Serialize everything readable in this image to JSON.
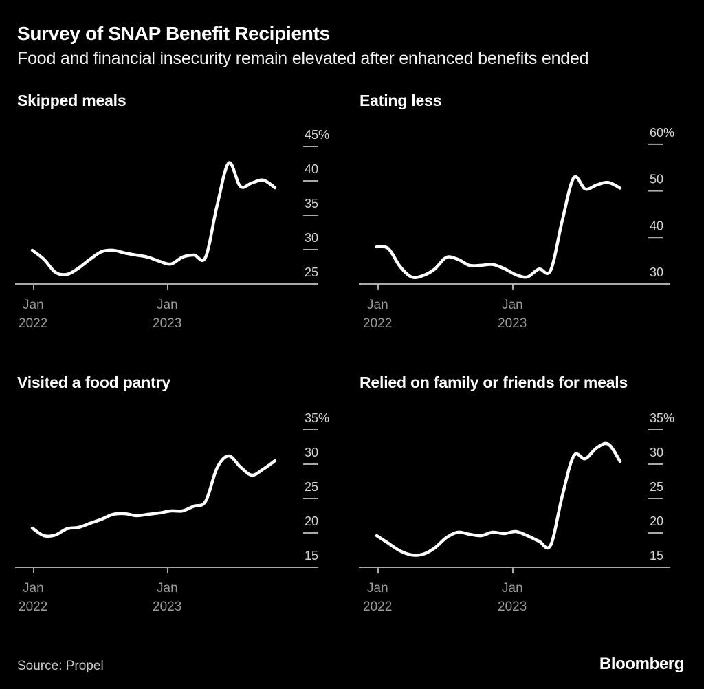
{
  "header": {
    "title": "Survey of SNAP Benefit Recipients",
    "subtitle": "Food and financial insecurity remain elevated after enhanced benefits ended"
  },
  "footer": {
    "source": "Source: Propel",
    "brand": "Bloomberg"
  },
  "colors": {
    "background": "#000000",
    "line": "#ffffff",
    "axis": "#a9a9a9",
    "y_tick_label": "#d4d4d4",
    "x_tick_label": "#9b9b9b"
  },
  "chart_data": [
    {
      "type": "line",
      "title": "Skipped meals",
      "unit": "%",
      "grid": false,
      "y_axis_side": "right",
      "ylim": [
        25,
        48
      ],
      "y_ticks": [
        {
          "value": 45,
          "label": "45%"
        },
        {
          "value": 40,
          "label": "40"
        },
        {
          "value": 35,
          "label": "35"
        },
        {
          "value": 30,
          "label": "30"
        },
        {
          "value": 25,
          "label": "25"
        }
      ],
      "x_ticks": [
        {
          "index": 0,
          "label": [
            "Jan",
            "2022"
          ]
        },
        {
          "index": 12,
          "label": [
            "Jan",
            "2023"
          ]
        }
      ],
      "x": [
        "Jan 2022",
        "Feb 2022",
        "Mar 2022",
        "Apr 2022",
        "May 2022",
        "Jun 2022",
        "Jul 2022",
        "Aug 2022",
        "Sep 2022",
        "Oct 2022",
        "Nov 2022",
        "Dec 2022",
        "Jan 2023",
        "Feb 2023",
        "Mar 2023",
        "Apr 2023",
        "May 2023",
        "Jun 2023",
        "Jul 2023",
        "Aug 2023",
        "Sep 2023",
        "Oct 2023"
      ],
      "values": [
        29.9,
        28.6,
        26.7,
        26.4,
        27.3,
        28.6,
        29.7,
        29.9,
        29.5,
        29.2,
        28.9,
        28.3,
        27.9,
        28.9,
        29.2,
        28.9,
        36.5,
        42.6,
        39.2,
        39.7,
        40.1,
        39.0
      ]
    },
    {
      "type": "line",
      "title": "Eating less",
      "unit": "%",
      "grid": false,
      "y_axis_side": "right",
      "ylim": [
        30,
        57
      ],
      "y_ticks": [
        {
          "value": 60,
          "label": "60%"
        },
        {
          "value": 50,
          "label": "50"
        },
        {
          "value": 40,
          "label": "40"
        },
        {
          "value": 30,
          "label": "30"
        }
      ],
      "x_ticks": [
        {
          "index": 0,
          "label": [
            "Jan",
            "2022"
          ]
        },
        {
          "index": 12,
          "label": [
            "Jan",
            "2023"
          ]
        }
      ],
      "x": [
        "Jan 2022",
        "Feb 2022",
        "Mar 2022",
        "Apr 2022",
        "May 2022",
        "Jun 2022",
        "Jul 2022",
        "Aug 2022",
        "Sep 2022",
        "Oct 2022",
        "Nov 2022",
        "Dec 2022",
        "Jan 2023",
        "Feb 2023",
        "Mar 2023",
        "Apr 2023",
        "May 2023",
        "Jun 2023",
        "Jul 2023",
        "Aug 2023",
        "Sep 2023",
        "Oct 2023"
      ],
      "values": [
        38.0,
        37.6,
        33.8,
        31.5,
        31.8,
        33.2,
        35.7,
        35.3,
        34.0,
        34.0,
        34.2,
        33.3,
        32.0,
        31.5,
        33.2,
        32.9,
        43.5,
        52.8,
        50.4,
        51.3,
        51.8,
        50.6
      ]
    },
    {
      "type": "line",
      "title": "Visited a food pantry",
      "unit": "%",
      "grid": false,
      "y_axis_side": "right",
      "ylim": [
        15,
        38
      ],
      "y_ticks": [
        {
          "value": 35,
          "label": "35%"
        },
        {
          "value": 30,
          "label": "30"
        },
        {
          "value": 25,
          "label": "25"
        },
        {
          "value": 20,
          "label": "20"
        },
        {
          "value": 15,
          "label": "15"
        }
      ],
      "x_ticks": [
        {
          "index": 0,
          "label": [
            "Jan",
            "2022"
          ]
        },
        {
          "index": 12,
          "label": [
            "Jan",
            "2023"
          ]
        }
      ],
      "x": [
        "Jan 2022",
        "Feb 2022",
        "Mar 2022",
        "Apr 2022",
        "May 2022",
        "Jun 2022",
        "Jul 2022",
        "Aug 2022",
        "Sep 2022",
        "Oct 2022",
        "Nov 2022",
        "Dec 2022",
        "Jan 2023",
        "Feb 2023",
        "Mar 2023",
        "Apr 2023",
        "May 2023",
        "Jun 2023",
        "Jul 2023",
        "Aug 2023",
        "Sep 2023",
        "Oct 2023"
      ],
      "values": [
        20.7,
        19.6,
        19.7,
        20.6,
        20.8,
        21.4,
        22.0,
        22.7,
        22.8,
        22.5,
        22.7,
        22.9,
        23.2,
        23.2,
        23.9,
        24.6,
        29.5,
        31.2,
        29.6,
        28.4,
        29.3,
        30.5
      ]
    },
    {
      "type": "line",
      "title": "Relied on family or friends for meals",
      "unit": "%",
      "grid": false,
      "y_axis_side": "right",
      "ylim": [
        15,
        38
      ],
      "y_ticks": [
        {
          "value": 35,
          "label": "35%"
        },
        {
          "value": 30,
          "label": "30"
        },
        {
          "value": 25,
          "label": "25"
        },
        {
          "value": 20,
          "label": "20"
        },
        {
          "value": 15,
          "label": "15"
        }
      ],
      "x_ticks": [
        {
          "index": 0,
          "label": [
            "Jan",
            "2022"
          ]
        },
        {
          "index": 12,
          "label": [
            "Jan",
            "2023"
          ]
        }
      ],
      "x": [
        "Jan 2022",
        "Feb 2022",
        "Mar 2022",
        "Apr 2022",
        "May 2022",
        "Jun 2022",
        "Jul 2022",
        "Aug 2022",
        "Sep 2022",
        "Oct 2022",
        "Nov 2022",
        "Dec 2022",
        "Jan 2023",
        "Feb 2023",
        "Mar 2023",
        "Apr 2023",
        "May 2023",
        "Jun 2023",
        "Jul 2023",
        "Aug 2023",
        "Sep 2023",
        "Oct 2023"
      ],
      "values": [
        19.6,
        18.5,
        17.4,
        16.8,
        16.9,
        17.8,
        19.3,
        20.1,
        19.8,
        19.6,
        20.1,
        19.9,
        20.2,
        19.6,
        18.8,
        18.2,
        25.3,
        31.2,
        30.8,
        32.4,
        32.9,
        30.4
      ]
    }
  ]
}
